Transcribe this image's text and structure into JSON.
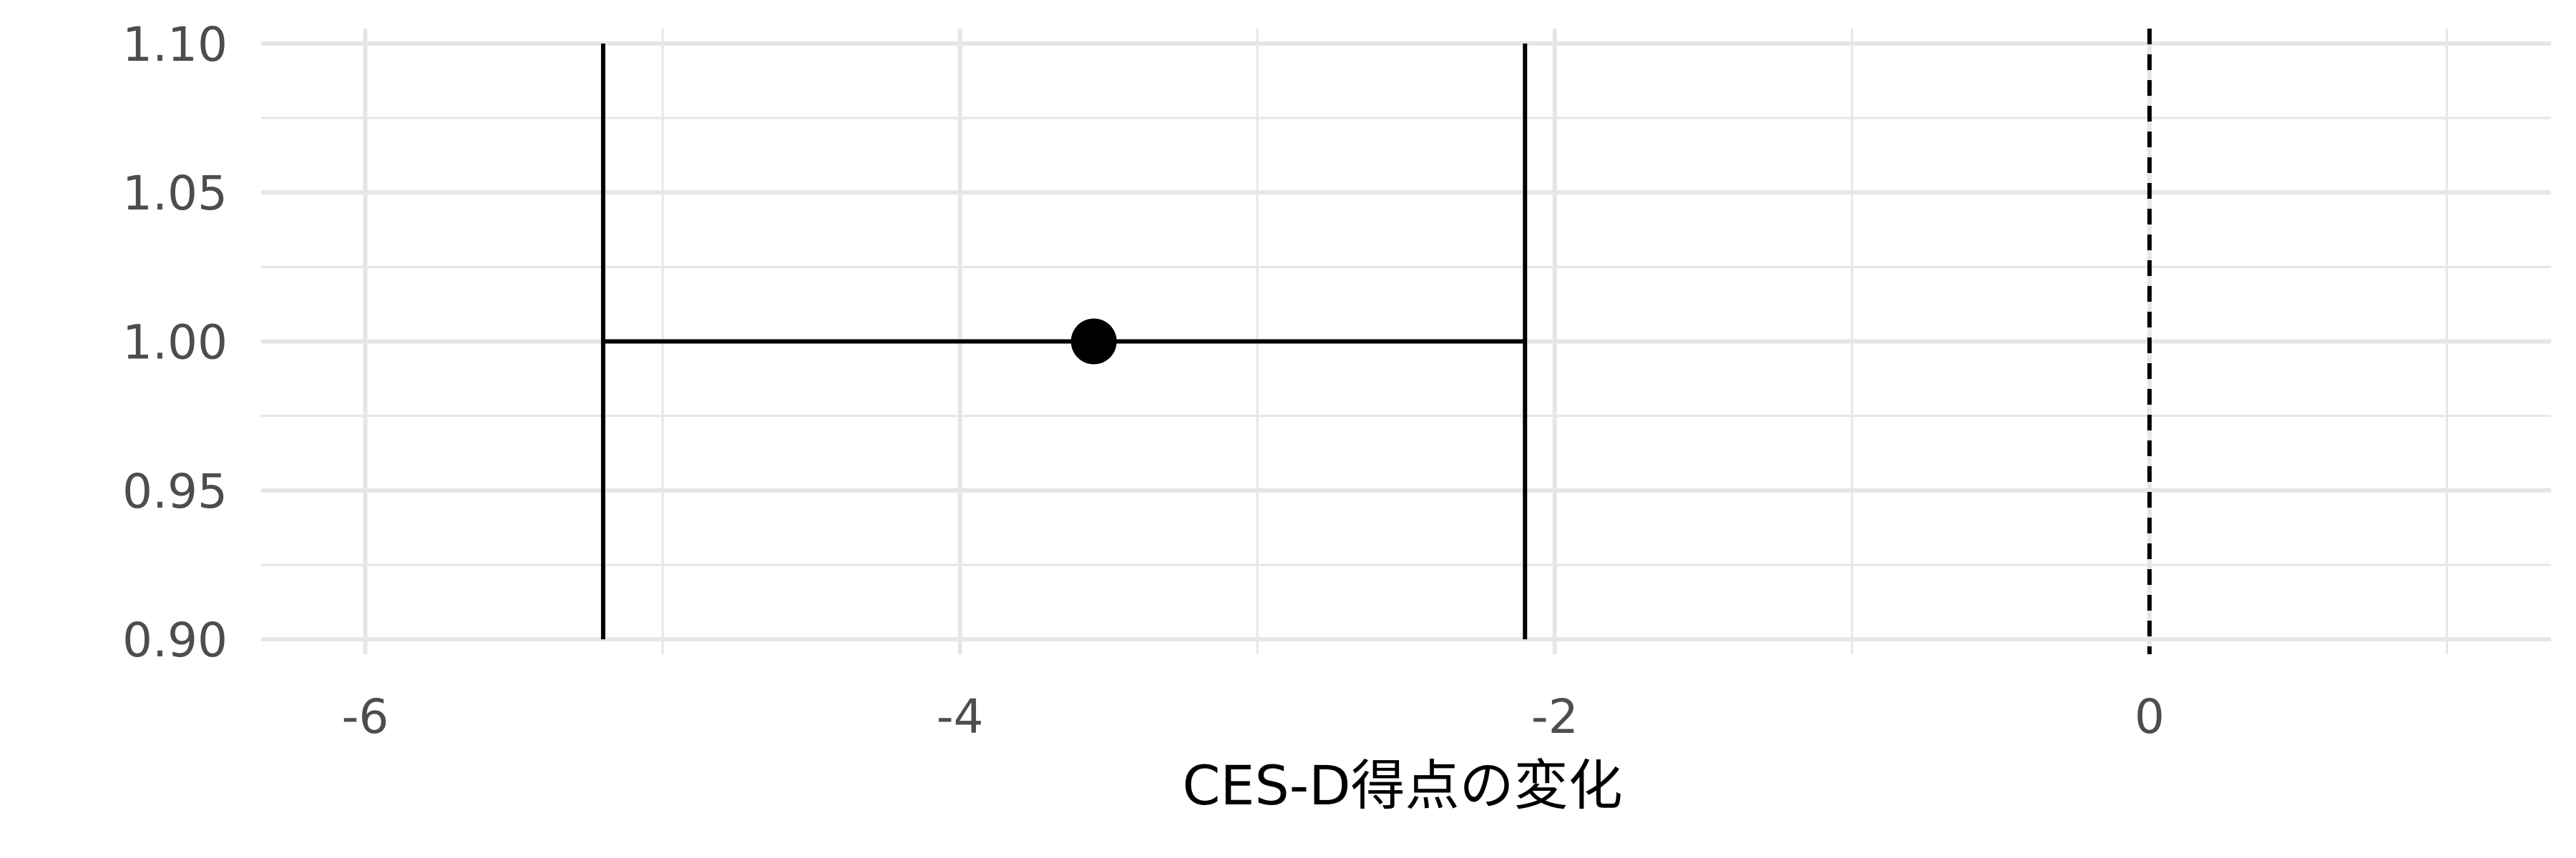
{
  "chart_data": {
    "type": "errorbar",
    "xlabel": "CES-D得点の変化",
    "ylabel": "",
    "title": "",
    "xlim": [
      -6.35,
      1.35
    ],
    "ylim": [
      0.895,
      1.105
    ],
    "x_ticks": [
      -6,
      -4,
      -2,
      0
    ],
    "x_tick_labels": [
      "-6",
      "-4",
      "-2",
      "0"
    ],
    "y_ticks": [
      0.9,
      0.95,
      1.0,
      1.05,
      1.1
    ],
    "y_tick_labels": [
      "0.90",
      "0.95",
      "1.00",
      "1.05",
      "1.10"
    ],
    "grid": true,
    "points": [
      {
        "x": -3.55,
        "y": 1.0,
        "ci_low": -5.2,
        "ci_high": -2.1
      }
    ],
    "reference_line": {
      "x": 0,
      "style": "dashed"
    },
    "colors": {
      "grid": "#e6e6e6",
      "mark": "#000000",
      "tick_text": "#4d4d4d"
    }
  }
}
